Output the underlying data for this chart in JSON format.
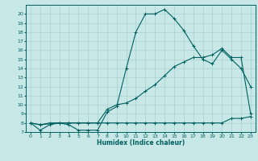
{
  "xlabel": "Humidex (Indice chaleur)",
  "bg_color": "#c8e8e8",
  "line_color": "#006060",
  "grid_color": "#aad0d0",
  "xlim": [
    -0.5,
    23.5
  ],
  "ylim": [
    7,
    21
  ],
  "xticks": [
    0,
    1,
    2,
    3,
    4,
    5,
    6,
    7,
    8,
    9,
    10,
    11,
    12,
    13,
    14,
    15,
    16,
    17,
    18,
    19,
    20,
    21,
    22,
    23
  ],
  "yticks": [
    7,
    8,
    9,
    10,
    11,
    12,
    13,
    14,
    15,
    16,
    17,
    18,
    19,
    20
  ],
  "line1_x": [
    0,
    1,
    2,
    3,
    4,
    5,
    6,
    7,
    8,
    9,
    10,
    11,
    12,
    13,
    14,
    15,
    16,
    17,
    18,
    19,
    20,
    21,
    22,
    23
  ],
  "line1_y": [
    8,
    7.2,
    7.8,
    8.0,
    7.8,
    7.2,
    7.2,
    7.2,
    9.2,
    9.8,
    14.0,
    18.0,
    20.0,
    20.0,
    20.5,
    19.5,
    18.2,
    16.5,
    15.0,
    14.5,
    16.0,
    15.0,
    14.0,
    12.0
  ],
  "line2_x": [
    0,
    1,
    2,
    3,
    4,
    5,
    6,
    7,
    8,
    9,
    10,
    11,
    12,
    13,
    14,
    15,
    16,
    17,
    18,
    19,
    20,
    21,
    22,
    23
  ],
  "line2_y": [
    8.0,
    7.8,
    8.0,
    8.0,
    8.0,
    8.0,
    8.0,
    8.0,
    8.0,
    8.0,
    8.0,
    8.0,
    8.0,
    8.0,
    8.0,
    8.0,
    8.0,
    8.0,
    8.0,
    8.0,
    8.0,
    8.5,
    8.5,
    8.7
  ],
  "line3_x": [
    0,
    1,
    3,
    4,
    5,
    6,
    7,
    8,
    9,
    10,
    11,
    12,
    13,
    14,
    15,
    16,
    17,
    18,
    19,
    20,
    21,
    22,
    23
  ],
  "line3_y": [
    8.0,
    7.8,
    8.0,
    8.0,
    8.0,
    8.0,
    8.0,
    9.5,
    10.0,
    10.2,
    10.7,
    11.5,
    12.2,
    13.2,
    14.2,
    14.7,
    15.2,
    15.2,
    15.5,
    16.2,
    15.2,
    15.2,
    9.0
  ]
}
